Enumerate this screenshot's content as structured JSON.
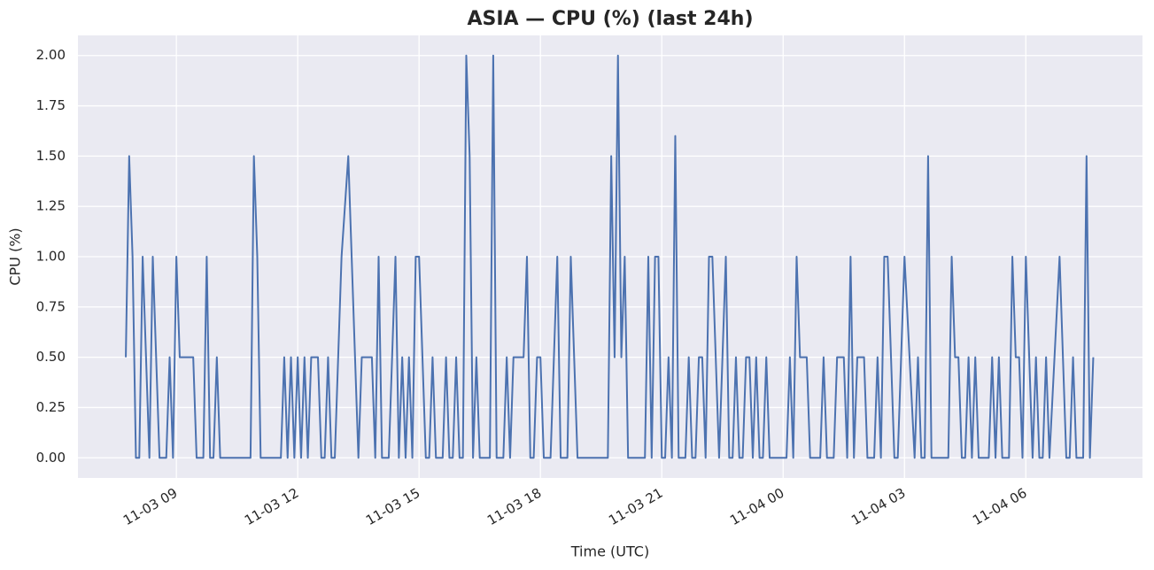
{
  "chart_data": {
    "type": "line",
    "title": "ASIA — CPU (%) (last 24h)",
    "x_label": "Time (UTC)",
    "y_label": "CPU (%)",
    "color": "#4c72b0",
    "grid": true,
    "x": [
      "11-03 07:45",
      "11-03 07:50",
      "11-03 07:55",
      "11-03 08:00",
      "11-03 08:05",
      "11-03 08:10",
      "11-03 08:15",
      "11-03 08:20",
      "11-03 08:25",
      "11-03 08:30",
      "11-03 08:35",
      "11-03 08:45",
      "11-03 08:50",
      "11-03 08:55",
      "11-03 09:00",
      "11-03 09:05",
      "11-03 09:25",
      "11-03 09:30",
      "11-03 09:40",
      "11-03 09:45",
      "11-03 09:50",
      "11-03 09:55",
      "11-03 10:00",
      "11-03 10:05",
      "11-03 10:50",
      "11-03 10:55",
      "11-03 11:00",
      "11-03 11:05",
      "11-03 11:35",
      "11-03 11:40",
      "11-03 11:45",
      "11-03 11:50",
      "11-03 11:55",
      "11-03 12:00",
      "11-03 12:05",
      "11-03 12:10",
      "11-03 12:15",
      "11-03 12:20",
      "11-03 12:30",
      "11-03 12:35",
      "11-03 12:40",
      "11-03 12:45",
      "11-03 12:50",
      "11-03 12:55",
      "11-03 13:05",
      "11-03 13:15",
      "11-03 13:20",
      "11-03 13:30",
      "11-03 13:35",
      "11-03 13:50",
      "11-03 13:55",
      "11-03 14:00",
      "11-03 14:05",
      "11-03 14:15",
      "11-03 14:25",
      "11-03 14:30",
      "11-03 14:35",
      "11-03 14:40",
      "11-03 14:45",
      "11-03 14:50",
      "11-03 14:55",
      "11-03 15:00",
      "11-03 15:10",
      "11-03 15:15",
      "11-03 15:20",
      "11-03 15:25",
      "11-03 15:35",
      "11-03 15:40",
      "11-03 15:45",
      "11-03 15:50",
      "11-03 15:55",
      "11-03 16:00",
      "11-03 16:05",
      "11-03 16:10",
      "11-03 16:15",
      "11-03 16:20",
      "11-03 16:25",
      "11-03 16:30",
      "11-03 16:45",
      "11-03 16:50",
      "11-03 16:55",
      "11-03 17:05",
      "11-03 17:10",
      "11-03 17:15",
      "11-03 17:20",
      "11-03 17:35",
      "11-03 17:40",
      "11-03 17:45",
      "11-03 17:50",
      "11-03 17:55",
      "11-03 18:00",
      "11-03 18:05",
      "11-03 18:15",
      "11-03 18:25",
      "11-03 18:30",
      "11-03 18:40",
      "11-03 18:45",
      "11-03 18:55",
      "11-03 19:40",
      "11-03 19:45",
      "11-03 19:50",
      "11-03 19:55",
      "11-03 20:00",
      "11-03 20:05",
      "11-03 20:10",
      "11-03 20:35",
      "11-03 20:40",
      "11-03 20:45",
      "11-03 20:50",
      "11-03 20:55",
      "11-03 21:00",
      "11-03 21:05",
      "11-03 21:10",
      "11-03 21:15",
      "11-03 21:20",
      "11-03 21:25",
      "11-03 21:35",
      "11-03 21:40",
      "11-03 21:45",
      "11-03 21:50",
      "11-03 21:55",
      "11-03 22:00",
      "11-03 22:05",
      "11-03 22:10",
      "11-03 22:15",
      "11-03 22:25",
      "11-03 22:35",
      "11-03 22:40",
      "11-03 22:45",
      "11-03 22:50",
      "11-03 22:55",
      "11-03 23:00",
      "11-03 23:05",
      "11-03 23:10",
      "11-03 23:15",
      "11-03 23:20",
      "11-03 23:25",
      "11-03 23:30",
      "11-03 23:35",
      "11-03 23:40",
      "11-04 00:05",
      "11-04 00:10",
      "11-04 00:15",
      "11-04 00:20",
      "11-04 00:25",
      "11-04 00:35",
      "11-04 00:40",
      "11-04 00:55",
      "11-04 01:00",
      "11-04 01:05",
      "11-04 01:15",
      "11-04 01:20",
      "11-04 01:30",
      "11-04 01:35",
      "11-04 01:40",
      "11-04 01:45",
      "11-04 01:50",
      "11-04 02:00",
      "11-04 02:05",
      "11-04 02:15",
      "11-04 02:20",
      "11-04 02:25",
      "11-04 02:30",
      "11-04 02:35",
      "11-04 02:45",
      "11-04 02:50",
      "11-04 03:00",
      "11-04 03:15",
      "11-04 03:20",
      "11-04 03:25",
      "11-04 03:30",
      "11-04 03:35",
      "11-04 03:40",
      "11-04 04:05",
      "11-04 04:10",
      "11-04 04:15",
      "11-04 04:20",
      "11-04 04:25",
      "11-04 04:30",
      "11-04 04:35",
      "11-04 04:40",
      "11-04 04:45",
      "11-04 04:50",
      "11-04 05:05",
      "11-04 05:10",
      "11-04 05:15",
      "11-04 05:20",
      "11-04 05:25",
      "11-04 05:35",
      "11-04 05:40",
      "11-04 05:45",
      "11-04 05:50",
      "11-04 05:55",
      "11-04 06:00",
      "11-04 06:10",
      "11-04 06:15",
      "11-04 06:20",
      "11-04 06:25",
      "11-04 06:30",
      "11-04 06:35",
      "11-04 06:50",
      "11-04 07:00",
      "11-04 07:05",
      "11-04 07:10",
      "11-04 07:15",
      "11-04 07:25",
      "11-04 07:30",
      "11-04 07:35",
      "11-04 07:40"
    ],
    "values": [
      0.5,
      1.5,
      1.0,
      0,
      0,
      1.0,
      0.5,
      0,
      1.0,
      0.5,
      0,
      0,
      0.5,
      0,
      1.0,
      0.5,
      0.5,
      0,
      0,
      1.0,
      0,
      0,
      0.5,
      0,
      0,
      1.5,
      1.0,
      0,
      0,
      0.5,
      0,
      0.5,
      0,
      0.5,
      0,
      0.5,
      0,
      0.5,
      0.5,
      0,
      0,
      0.5,
      0,
      0,
      1.0,
      1.5,
      1.0,
      0,
      0.5,
      0.5,
      0,
      1.0,
      0,
      0,
      1.0,
      0,
      0.5,
      0,
      0.5,
      0,
      1.0,
      1.0,
      0,
      0,
      0.5,
      0,
      0,
      0.5,
      0,
      0,
      0.5,
      0,
      0,
      2.0,
      1.5,
      0,
      0.5,
      0,
      0,
      2.0,
      0,
      0,
      0.5,
      0,
      0.5,
      0.5,
      1.0,
      0,
      0,
      0.5,
      0.5,
      0,
      0,
      1.0,
      0,
      0,
      1.0,
      0,
      0,
      1.5,
      0.5,
      2.0,
      0.5,
      1.0,
      0,
      0,
      1.0,
      0,
      1.0,
      1.0,
      0,
      0,
      0.5,
      0,
      1.6,
      0,
      0,
      0.5,
      0,
      0,
      0.5,
      0.5,
      0,
      1.0,
      1.0,
      0,
      1.0,
      0,
      0,
      0.5,
      0,
      0,
      0.5,
      0.5,
      0,
      0.5,
      0,
      0,
      0.5,
      0,
      0,
      0.5,
      0,
      1.0,
      0.5,
      0.5,
      0,
      0,
      0.5,
      0,
      0,
      0.5,
      0.5,
      0,
      1.0,
      0,
      0.5,
      0.5,
      0,
      0,
      0.5,
      0,
      1.0,
      1.0,
      0,
      0,
      1.0,
      0,
      0.5,
      0,
      0,
      1.5,
      0,
      0,
      1.0,
      0.5,
      0.5,
      0,
      0,
      0.5,
      0,
      0.5,
      0,
      0,
      0.5,
      0,
      0.5,
      0,
      0,
      1.0,
      0.5,
      0.5,
      0,
      1.0,
      0,
      0.5,
      0,
      0,
      0.5,
      0,
      1.0,
      0,
      0,
      0.5,
      0,
      0,
      1.5,
      0,
      0.5
    ],
    "xlim": [
      "11-03 06:34",
      "11-04 08:53"
    ],
    "xticks": [
      {
        "value": "11-03 09:00",
        "label": "11-03 09"
      },
      {
        "value": "11-03 12:00",
        "label": "11-03 12"
      },
      {
        "value": "11-03 15:00",
        "label": "11-03 15"
      },
      {
        "value": "11-03 18:00",
        "label": "11-03 18"
      },
      {
        "value": "11-03 21:00",
        "label": "11-03 21"
      },
      {
        "value": "11-04 00:00",
        "label": "11-04 00"
      },
      {
        "value": "11-04 03:00",
        "label": "11-04 03"
      },
      {
        "value": "11-04 06:00",
        "label": "11-04 06"
      }
    ],
    "ylim": [
      -0.1,
      2.1
    ],
    "yticks": [
      {
        "value": 0,
        "label": "0.00"
      },
      {
        "value": 0.25,
        "label": "0.25"
      },
      {
        "value": 0.5,
        "label": "0.50"
      },
      {
        "value": 0.75,
        "label": "0.75"
      },
      {
        "value": 1,
        "label": "1.00"
      },
      {
        "value": 1.25,
        "label": "1.25"
      },
      {
        "value": 1.5,
        "label": "1.50"
      },
      {
        "value": 1.75,
        "label": "1.75"
      },
      {
        "value": 2,
        "label": "2.00"
      }
    ]
  }
}
